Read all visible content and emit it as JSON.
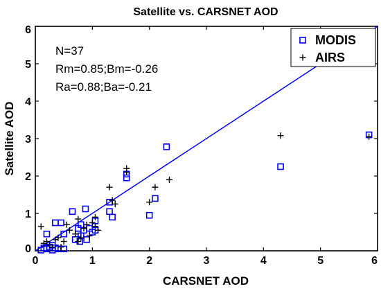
{
  "chart_data": {
    "type": "scatter",
    "title": "Satellite vs. CARSNET AOD",
    "xlabel": "CARSNET AOD",
    "ylabel": "Satellite AOD",
    "xlim": [
      0,
      6
    ],
    "ylim": [
      0,
      6
    ],
    "xticks": [
      "0",
      "1",
      "2",
      "3",
      "4",
      "5",
      "6"
    ],
    "yticks": [
      "0",
      "1",
      "2",
      "3",
      "4",
      "5",
      "6"
    ],
    "grid": false,
    "legend_position": "top-right",
    "annotations": [
      "N=37",
      "Rm=0.85;Bm=-0.26",
      "Ra=0.88;Ba=-0.21"
    ],
    "series": [
      {
        "name": "MODIS",
        "marker": "square",
        "color": "#0000ff",
        "points": [
          [
            0.1,
            0.02
          ],
          [
            0.15,
            0.08
          ],
          [
            0.2,
            0.05
          ],
          [
            0.2,
            0.45
          ],
          [
            0.25,
            0.1
          ],
          [
            0.3,
            0.02
          ],
          [
            0.3,
            0.15
          ],
          [
            0.35,
            0.75
          ],
          [
            0.35,
            0.08
          ],
          [
            0.4,
            0.05
          ],
          [
            0.45,
            0.75
          ],
          [
            0.5,
            0.05
          ],
          [
            0.5,
            0.45
          ],
          [
            0.65,
            1.05
          ],
          [
            0.7,
            0.3
          ],
          [
            0.75,
            0.6
          ],
          [
            0.75,
            0.45
          ],
          [
            0.78,
            0.25
          ],
          [
            0.8,
            0.7
          ],
          [
            0.8,
            0.4
          ],
          [
            0.85,
            0.55
          ],
          [
            0.88,
            1.12
          ],
          [
            0.9,
            0.3
          ],
          [
            0.95,
            0.6
          ],
          [
            1.0,
            0.5
          ],
          [
            1.05,
            0.8
          ],
          [
            1.05,
            0.55
          ],
          [
            1.3,
            1.3
          ],
          [
            1.3,
            1.05
          ],
          [
            1.35,
            0.9
          ],
          [
            1.6,
            2.05
          ],
          [
            1.6,
            1.95
          ],
          [
            2.0,
            0.95
          ],
          [
            2.1,
            1.4
          ],
          [
            2.3,
            2.78
          ],
          [
            4.3,
            2.25
          ],
          [
            5.85,
            3.1
          ]
        ]
      },
      {
        "name": "AIRS",
        "marker": "plus",
        "color": "#000000",
        "points": [
          [
            0.1,
            0.65
          ],
          [
            0.15,
            0.2
          ],
          [
            0.2,
            0.25
          ],
          [
            0.25,
            0.15
          ],
          [
            0.3,
            0.1
          ],
          [
            0.35,
            0.3
          ],
          [
            0.4,
            0.35
          ],
          [
            0.45,
            0.1
          ],
          [
            0.5,
            0.25
          ],
          [
            0.55,
            0.7
          ],
          [
            0.6,
            0.55
          ],
          [
            0.7,
            0.45
          ],
          [
            0.75,
            0.85
          ],
          [
            0.75,
            0.25
          ],
          [
            0.8,
            0.35
          ],
          [
            0.85,
            0.6
          ],
          [
            0.9,
            0.7
          ],
          [
            0.95,
            0.4
          ],
          [
            1.0,
            0.75
          ],
          [
            1.05,
            0.65
          ],
          [
            1.05,
            0.9
          ],
          [
            1.1,
            0.55
          ],
          [
            1.3,
            1.7
          ],
          [
            1.35,
            1.35
          ],
          [
            1.4,
            1.25
          ],
          [
            1.6,
            2.2
          ],
          [
            1.6,
            2.1
          ],
          [
            2.0,
            1.3
          ],
          [
            2.1,
            1.7
          ],
          [
            2.35,
            1.9
          ],
          [
            4.3,
            3.08
          ],
          [
            5.85,
            3.05
          ]
        ]
      }
    ],
    "fit_line": {
      "color": "#0000ff",
      "x": [
        0,
        6
      ],
      "y": [
        0,
        6
      ]
    }
  }
}
